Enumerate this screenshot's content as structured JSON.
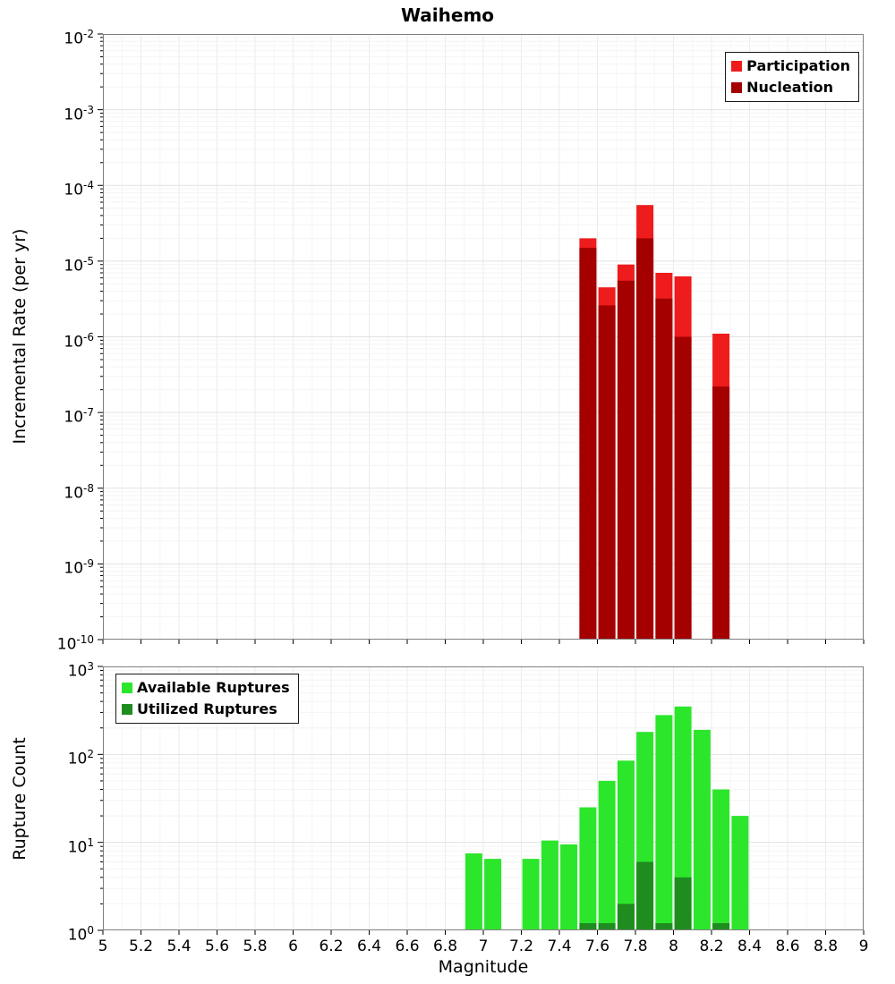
{
  "title": "Waihemo",
  "xlabel": "Magnitude",
  "xaxis": {
    "min": 5,
    "max": 9,
    "tick_values": [
      5,
      5.2,
      5.4,
      5.6,
      5.8,
      6,
      6.2,
      6.4,
      6.6,
      6.8,
      7,
      7.2,
      7.4,
      7.6,
      7.8,
      8,
      8.2,
      8.4,
      8.6,
      8.8,
      9
    ],
    "tick_labels": [
      "5",
      "5.2",
      "5.4",
      "5.6",
      "5.8",
      "6",
      "6.2",
      "6.4",
      "6.6",
      "6.8",
      "7",
      "7.2",
      "7.4",
      "7.6",
      "7.8",
      "8",
      "8.2",
      "8.4",
      "8.6",
      "8.8",
      "9"
    ]
  },
  "chart_data": [
    {
      "id": "incremental-rate",
      "type": "bar",
      "title": "Waihemo",
      "xlabel": "Magnitude",
      "ylabel": "Incremental Rate (per yr)",
      "yscale": "log",
      "ylim_exp": [
        -10,
        -2
      ],
      "grid": true,
      "legend_position": "top-right",
      "categories": [
        7.55,
        7.65,
        7.75,
        7.85,
        7.95,
        8.05,
        8.25
      ],
      "series": [
        {
          "name": "Participation",
          "color": "#ee1c1c",
          "values": [
            2e-05,
            4.5e-06,
            9e-06,
            5.5e-05,
            7e-06,
            6.3e-06,
            1.1e-06
          ]
        },
        {
          "name": "Nucleation",
          "color": "#a40000",
          "values": [
            1.5e-05,
            2.6e-06,
            5.5e-06,
            2e-05,
            3.2e-06,
            1e-06,
            2.2e-07
          ]
        }
      ]
    },
    {
      "id": "rupture-count",
      "type": "bar",
      "xlabel": "Magnitude",
      "ylabel": "Rupture Count",
      "yscale": "log",
      "ylim_exp": [
        0,
        3
      ],
      "grid": true,
      "legend_position": "top-left",
      "categories": [
        6.95,
        7.05,
        7.25,
        7.35,
        7.45,
        7.55,
        7.65,
        7.75,
        7.85,
        7.95,
        8.05,
        8.15,
        8.25,
        8.35
      ],
      "series": [
        {
          "name": "Available Ruptures",
          "color": "#2ce62c",
          "values": [
            7.5,
            6.5,
            6.5,
            10.5,
            9.5,
            25,
            50,
            85,
            180,
            280,
            350,
            190,
            40,
            20
          ]
        },
        {
          "name": "Utilized Ruptures",
          "color": "#1f8c1f",
          "values": [
            0,
            0,
            0,
            0,
            0,
            1,
            1,
            2,
            6,
            1,
            4,
            0,
            1,
            0
          ]
        }
      ]
    }
  ]
}
